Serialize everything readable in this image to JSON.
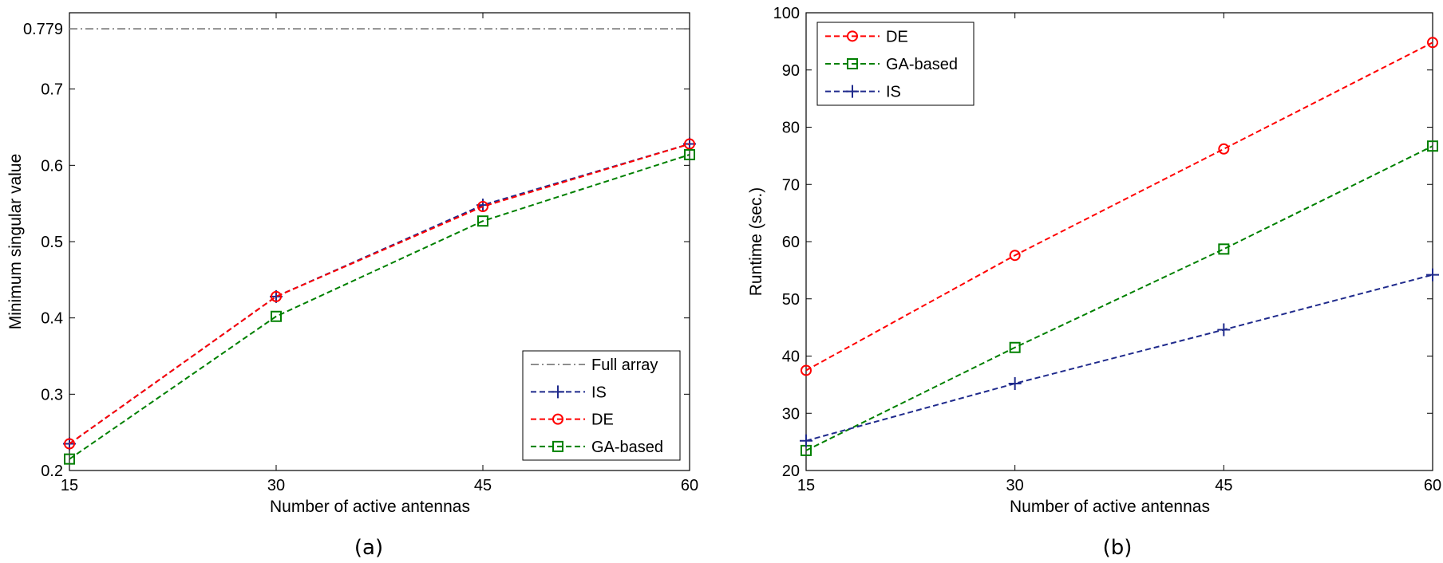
{
  "chart_data": [
    {
      "type": "line",
      "caption": "(a)",
      "xlabel": "Number of active antennas",
      "ylabel": "Minimum singular value",
      "xlim": [
        15,
        60
      ],
      "ylim": [
        0.2,
        0.8
      ],
      "xticks": [
        15,
        30,
        45,
        60
      ],
      "yticks": [
        0.2,
        0.3,
        0.4,
        0.5,
        0.6,
        0.7,
        0.779
      ],
      "ytick_labels": [
        "0.2",
        "0.3",
        "0.4",
        "0.5",
        "0.6",
        "0.7",
        "0.779"
      ],
      "legend_position": "bottom-right",
      "series": [
        {
          "name": "Full array",
          "color": "#808080",
          "dash": "dashdot",
          "marker": "none",
          "x": [
            15,
            60
          ],
          "values": [
            0.779,
            0.779
          ]
        },
        {
          "name": "IS",
          "color": "#1f2a8c",
          "dash": "dashed",
          "marker": "plus",
          "x": [
            15,
            30,
            45,
            60
          ],
          "values": [
            0.235,
            0.428,
            0.548,
            0.628
          ]
        },
        {
          "name": "DE",
          "color": "#ff0000",
          "dash": "dashed",
          "marker": "circle",
          "x": [
            15,
            30,
            45,
            60
          ],
          "values": [
            0.235,
            0.428,
            0.546,
            0.628
          ]
        },
        {
          "name": "GA-based",
          "color": "#008000",
          "dash": "dashed",
          "marker": "square",
          "x": [
            15,
            30,
            45,
            60
          ],
          "values": [
            0.215,
            0.402,
            0.527,
            0.614
          ]
        }
      ]
    },
    {
      "type": "line",
      "caption": "(b)",
      "xlabel": "Number of active antennas",
      "ylabel": "Runtime (sec.)",
      "xlim": [
        15,
        60
      ],
      "ylim": [
        20,
        100
      ],
      "xticks": [
        15,
        30,
        45,
        60
      ],
      "yticks": [
        20,
        30,
        40,
        50,
        60,
        70,
        80,
        90,
        100
      ],
      "ytick_labels": [
        "20",
        "30",
        "40",
        "50",
        "60",
        "70",
        "80",
        "90",
        "100"
      ],
      "legend_position": "top-left",
      "series": [
        {
          "name": "DE",
          "color": "#ff0000",
          "dash": "dashed",
          "marker": "circle",
          "x": [
            15,
            30,
            45,
            60
          ],
          "values": [
            37.5,
            57.6,
            76.2,
            94.8
          ]
        },
        {
          "name": "GA-based",
          "color": "#008000",
          "dash": "dashed",
          "marker": "square",
          "x": [
            15,
            30,
            45,
            60
          ],
          "values": [
            23.5,
            41.5,
            58.7,
            76.7
          ]
        },
        {
          "name": "IS",
          "color": "#1f2a8c",
          "dash": "dashed",
          "marker": "plus",
          "x": [
            15,
            30,
            45,
            60
          ],
          "values": [
            25.2,
            35.2,
            44.6,
            54.2
          ]
        }
      ]
    }
  ]
}
